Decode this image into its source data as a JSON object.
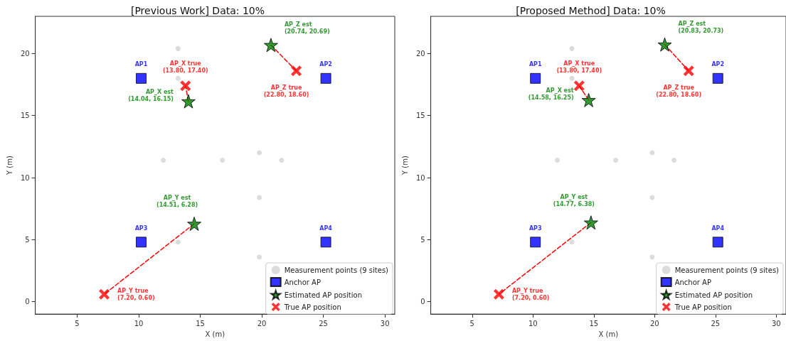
{
  "chart_data": [
    {
      "type": "scatter",
      "title": "[Previous Work] Data: 10%",
      "xlabel": "X (m)",
      "ylabel": "Y (m)",
      "xlim": [
        1.6,
        30.8
      ],
      "ylim": [
        -1,
        23
      ],
      "xticks": [
        5,
        10,
        15,
        20,
        25,
        30
      ],
      "yticks": [
        0,
        5,
        10,
        15,
        20
      ],
      "grid": false,
      "legend": "bottom right",
      "series": [
        {
          "type": "line",
          "color": "#ff0000",
          "line_style": "dashed",
          "marker": "none",
          "x": [
            14.04,
            13.8
          ],
          "values": [
            16.15,
            17.4
          ]
        },
        {
          "type": "line",
          "color": "#ff0000",
          "line_style": "dashed",
          "marker": "none",
          "x": [
            14.51,
            7.2
          ],
          "values": [
            6.28,
            0.6
          ]
        },
        {
          "type": "line",
          "color": "#ff0000",
          "line_style": "dashed",
          "marker": "none",
          "x": [
            20.74,
            22.8
          ],
          "values": [
            20.69,
            18.6
          ]
        },
        {
          "name": "Measurement points (9 sites)",
          "color": "#d3d3d3",
          "marker": "circle",
          "x": [
            13.2,
            13.2,
            12.0,
            16.8,
            19.8,
            21.6,
            19.8,
            13.2,
            19.8
          ],
          "values": [
            20.4,
            18.0,
            11.4,
            11.4,
            12.0,
            11.4,
            8.4,
            4.8,
            3.6
          ]
        },
        {
          "name": "Anchor AP",
          "color": "#0000ff",
          "marker": "square",
          "x": [
            10.2,
            25.2,
            10.2,
            25.2
          ],
          "values": [
            18.0,
            18.0,
            4.8,
            4.8
          ],
          "value_labels": [
            "AP1",
            "AP2",
            "AP3",
            "AP4"
          ]
        },
        {
          "name": "Estimated AP position",
          "color": "#008000",
          "marker": "star",
          "x": [
            14.04,
            14.51,
            20.74
          ],
          "values": [
            16.15,
            6.28,
            20.69
          ],
          "value_labels": [
            "AP_X est\n(14.04, 16.15)",
            "AP_Y est\n(14.51, 6.28)",
            "AP_Z est\n(20.74, 20.69)"
          ]
        },
        {
          "name": "True AP position",
          "color": "#ff0000",
          "marker": "cross",
          "x": [
            13.8,
            7.2,
            22.8
          ],
          "values": [
            17.4,
            0.6,
            18.6
          ],
          "value_labels": [
            "AP_X true\n(13.80, 17.40)",
            "AP_Y true\n(7.20, 0.60)",
            "AP_Z true\n(22.80, 18.60)"
          ]
        }
      ]
    },
    {
      "type": "scatter",
      "title": "[Proposed Method] Data: 10%",
      "xlabel": "X (m)",
      "ylabel": "Y (m)",
      "xlim": [
        1.6,
        30.8
      ],
      "ylim": [
        -1,
        23
      ],
      "xticks": [
        5,
        10,
        15,
        20,
        25,
        30
      ],
      "yticks": [
        0,
        5,
        10,
        15,
        20
      ],
      "grid": false,
      "legend": "bottom right",
      "series": [
        {
          "type": "line",
          "color": "#ff0000",
          "line_style": "dashed",
          "marker": "none",
          "x": [
            14.58,
            13.8
          ],
          "values": [
            16.25,
            17.4
          ]
        },
        {
          "type": "line",
          "color": "#ff0000",
          "line_style": "dashed",
          "marker": "none",
          "x": [
            14.77,
            7.2
          ],
          "values": [
            6.38,
            0.6
          ]
        },
        {
          "type": "line",
          "color": "#ff0000",
          "line_style": "dashed",
          "marker": "none",
          "x": [
            20.83,
            22.8
          ],
          "values": [
            20.73,
            18.6
          ]
        },
        {
          "name": "Measurement points (9 sites)",
          "color": "#d3d3d3",
          "marker": "circle",
          "x": [
            13.2,
            13.2,
            12.0,
            16.8,
            19.8,
            21.6,
            19.8,
            13.2,
            19.8
          ],
          "values": [
            20.4,
            18.0,
            11.4,
            11.4,
            12.0,
            11.4,
            8.4,
            4.8,
            3.6
          ]
        },
        {
          "name": "Anchor AP",
          "color": "#0000ff",
          "marker": "square",
          "x": [
            10.2,
            25.2,
            10.2,
            25.2
          ],
          "values": [
            18.0,
            18.0,
            4.8,
            4.8
          ],
          "value_labels": [
            "AP1",
            "AP2",
            "AP3",
            "AP4"
          ]
        },
        {
          "name": "Estimated AP position",
          "color": "#008000",
          "marker": "star",
          "x": [
            14.58,
            14.77,
            20.83
          ],
          "values": [
            16.25,
            6.38,
            20.73
          ],
          "value_labels": [
            "AP_X est\n(14.58, 16.25)",
            "AP_Y est\n(14.77, 6.38)",
            "AP_Z est\n(20.83, 20.73)"
          ]
        },
        {
          "name": "True AP position",
          "color": "#ff0000",
          "marker": "cross",
          "x": [
            13.8,
            7.2,
            22.8
          ],
          "values": [
            17.4,
            0.6,
            18.6
          ],
          "value_labels": [
            "AP_X true\n(13.80, 17.40)",
            "AP_Y true\n(7.20, 0.60)",
            "AP_Z true\n(22.80, 18.60)"
          ]
        }
      ]
    }
  ]
}
